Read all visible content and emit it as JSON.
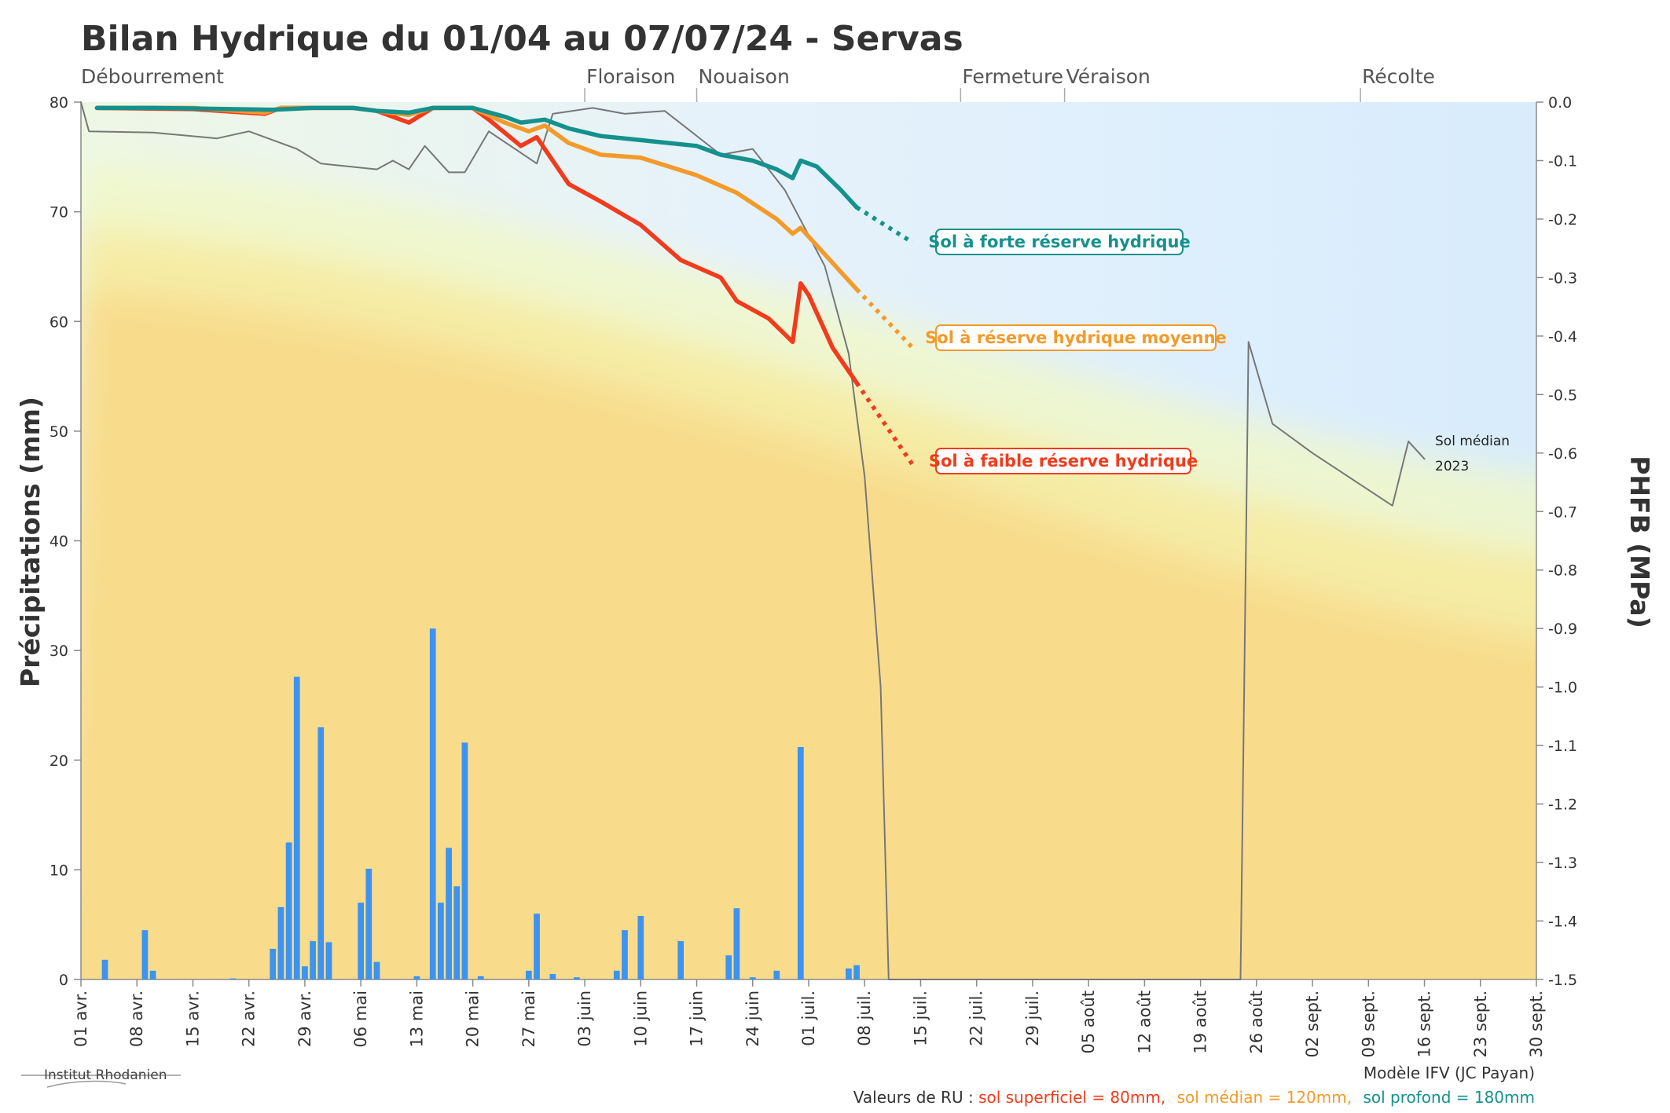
{
  "title": "Bilan Hydrique du 01/04 au 07/07/24 - Servas",
  "colors": {
    "faible": "#f23b1c",
    "moyenne": "#f49a2a",
    "forte": "#15918d",
    "rain": "#3d93f0",
    "median": "#777777"
  },
  "chart_data": {
    "type": "bar+line",
    "x_range": [
      "2024-04-01",
      "2024-09-30"
    ],
    "x_ticks": [
      "01 avr.",
      "08 avr.",
      "15 avr.",
      "22 avr.",
      "29 avr.",
      "06 mai",
      "13 mai",
      "20 mai",
      "27 mai",
      "03 juin",
      "10 juin",
      "17 juin",
      "24 juin",
      "01 juil.",
      "08 juil.",
      "15 juil.",
      "22 juil.",
      "29 juil.",
      "05 août",
      "12 août",
      "19 août",
      "26 août",
      "02 sept.",
      "09 sept.",
      "16 sept.",
      "23 sept.",
      "30 sept."
    ],
    "y_left": {
      "label": "Précipitations (mm)",
      "range": [
        0,
        80
      ],
      "ticks": [
        "0",
        "10",
        "20",
        "30",
        "40",
        "50",
        "60",
        "70",
        "80"
      ]
    },
    "y_right": {
      "label": "PHFB (MPa)",
      "range": [
        -1.5,
        0
      ],
      "ticks": [
        "0.0",
        "-0.1",
        "-0.2",
        "-0.3",
        "-0.4",
        "-0.5",
        "-0.6",
        "-0.7",
        "-0.8",
        "-0.9",
        "-1.0",
        "-1.1",
        "-1.2",
        "-1.3",
        "-1.4",
        "-1.5"
      ]
    },
    "stages": [
      {
        "name": "Débourrement",
        "date": "2024-04-01"
      },
      {
        "name": "Floraison",
        "date": "2024-06-03"
      },
      {
        "name": "Nouaison",
        "date": "2024-06-17"
      },
      {
        "name": "Fermeture",
        "date": "2024-07-20"
      },
      {
        "name": "Véraison",
        "date": "2024-08-02"
      },
      {
        "name": "Récolte",
        "date": "2024-09-08"
      }
    ],
    "precipitation": [
      [
        "2024-04-04",
        1.8
      ],
      [
        "2024-04-09",
        4.5
      ],
      [
        "2024-04-10",
        0.8
      ],
      [
        "2024-04-20",
        0.1
      ],
      [
        "2024-04-25",
        2.8
      ],
      [
        "2024-04-26",
        6.6
      ],
      [
        "2024-04-27",
        12.5
      ],
      [
        "2024-04-28",
        27.6
      ],
      [
        "2024-04-29",
        1.2
      ],
      [
        "2024-04-30",
        3.5
      ],
      [
        "2024-05-01",
        23.0
      ],
      [
        "2024-05-02",
        3.4
      ],
      [
        "2024-05-06",
        7.0
      ],
      [
        "2024-05-07",
        10.1
      ],
      [
        "2024-05-08",
        1.6
      ],
      [
        "2024-05-13",
        0.3
      ],
      [
        "2024-05-15",
        32.0
      ],
      [
        "2024-05-16",
        7.0
      ],
      [
        "2024-05-17",
        12.0
      ],
      [
        "2024-05-18",
        8.5
      ],
      [
        "2024-05-19",
        21.6
      ],
      [
        "2024-05-21",
        0.3
      ],
      [
        "2024-05-27",
        0.8
      ],
      [
        "2024-05-28",
        6.0
      ],
      [
        "2024-05-30",
        0.5
      ],
      [
        "2024-06-02",
        0.2
      ],
      [
        "2024-06-07",
        0.8
      ],
      [
        "2024-06-08",
        4.5
      ],
      [
        "2024-06-10",
        5.8
      ],
      [
        "2024-06-15",
        3.5
      ],
      [
        "2024-06-21",
        2.2
      ],
      [
        "2024-06-22",
        6.5
      ],
      [
        "2024-06-24",
        0.2
      ],
      [
        "2024-06-27",
        0.8
      ],
      [
        "2024-06-30",
        21.2
      ],
      [
        "2024-07-06",
        1.0
      ],
      [
        "2024-07-07",
        1.3
      ]
    ],
    "series": [
      {
        "name": "Sol à forte réserve hydrique",
        "color_key": "forte",
        "values": [
          [
            "2024-04-03",
            -0.01
          ],
          [
            "2024-04-10",
            -0.01
          ],
          [
            "2024-04-25",
            -0.013
          ],
          [
            "2024-04-30",
            -0.01
          ],
          [
            "2024-05-05",
            -0.01
          ],
          [
            "2024-05-08",
            -0.015
          ],
          [
            "2024-05-12",
            -0.018
          ],
          [
            "2024-05-15",
            -0.01
          ],
          [
            "2024-05-20",
            -0.01
          ],
          [
            "2024-05-24",
            -0.025
          ],
          [
            "2024-05-26",
            -0.035
          ],
          [
            "2024-05-29",
            -0.03
          ],
          [
            "2024-06-01",
            -0.045
          ],
          [
            "2024-06-05",
            -0.058
          ],
          [
            "2024-06-10",
            -0.065
          ],
          [
            "2024-06-17",
            -0.075
          ],
          [
            "2024-06-20",
            -0.09
          ],
          [
            "2024-06-24",
            -0.1
          ],
          [
            "2024-06-27",
            -0.115
          ],
          [
            "2024-06-29",
            -0.13
          ],
          [
            "2024-06-30",
            -0.1
          ],
          [
            "2024-07-02",
            -0.11
          ],
          [
            "2024-07-05",
            -0.15
          ],
          [
            "2024-07-07",
            -0.18
          ]
        ],
        "forecast": [
          [
            "2024-07-07",
            -0.18
          ],
          [
            "2024-07-14",
            -0.24
          ]
        ]
      },
      {
        "name": "Sol à réserve hydrique moyenne",
        "color_key": "moyenne",
        "values": [
          [
            "2024-04-03",
            -0.01
          ],
          [
            "2024-04-15",
            -0.01
          ],
          [
            "2024-04-24",
            -0.018
          ],
          [
            "2024-04-26",
            -0.01
          ],
          [
            "2024-05-05",
            -0.01
          ],
          [
            "2024-05-08",
            -0.015
          ],
          [
            "2024-05-12",
            -0.022
          ],
          [
            "2024-05-15",
            -0.01
          ],
          [
            "2024-05-20",
            -0.01
          ],
          [
            "2024-05-24",
            -0.035
          ],
          [
            "2024-05-27",
            -0.05
          ],
          [
            "2024-05-29",
            -0.04
          ],
          [
            "2024-06-01",
            -0.07
          ],
          [
            "2024-06-05",
            -0.09
          ],
          [
            "2024-06-10",
            -0.095
          ],
          [
            "2024-06-17",
            -0.125
          ],
          [
            "2024-06-22",
            -0.155
          ],
          [
            "2024-06-27",
            -0.2
          ],
          [
            "2024-06-29",
            -0.225
          ],
          [
            "2024-06-30",
            -0.215
          ],
          [
            "2024-07-02",
            -0.245
          ],
          [
            "2024-07-05",
            -0.29
          ],
          [
            "2024-07-07",
            -0.32
          ]
        ],
        "forecast": [
          [
            "2024-07-07",
            -0.32
          ],
          [
            "2024-07-14",
            -0.42
          ]
        ]
      },
      {
        "name": "Sol à faible réserve hydrique",
        "color_key": "faible",
        "values": [
          [
            "2024-04-03",
            -0.01
          ],
          [
            "2024-04-15",
            -0.012
          ],
          [
            "2024-04-24",
            -0.02
          ],
          [
            "2024-04-26",
            -0.01
          ],
          [
            "2024-05-05",
            -0.01
          ],
          [
            "2024-05-08",
            -0.015
          ],
          [
            "2024-05-12",
            -0.035
          ],
          [
            "2024-05-15",
            -0.01
          ],
          [
            "2024-05-20",
            -0.01
          ],
          [
            "2024-05-22",
            -0.03
          ],
          [
            "2024-05-26",
            -0.075
          ],
          [
            "2024-05-28",
            -0.06
          ],
          [
            "2024-06-01",
            -0.14
          ],
          [
            "2024-06-05",
            -0.17
          ],
          [
            "2024-06-10",
            -0.21
          ],
          [
            "2024-06-15",
            -0.27
          ],
          [
            "2024-06-20",
            -0.3
          ],
          [
            "2024-06-22",
            -0.34
          ],
          [
            "2024-06-26",
            -0.37
          ],
          [
            "2024-06-29",
            -0.41
          ],
          [
            "2024-06-30",
            -0.31
          ],
          [
            "2024-07-01",
            -0.33
          ],
          [
            "2024-07-04",
            -0.42
          ],
          [
            "2024-07-07",
            -0.48
          ]
        ],
        "forecast": [
          [
            "2024-07-07",
            -0.48
          ],
          [
            "2024-07-14",
            -0.62
          ]
        ]
      },
      {
        "name": "Sol médian 2023",
        "color_key": "median",
        "values": [
          [
            "2024-04-01",
            0.0
          ],
          [
            "2024-04-02",
            -0.05
          ],
          [
            "2024-04-10",
            -0.052
          ],
          [
            "2024-04-18",
            -0.062
          ],
          [
            "2024-04-22",
            -0.05
          ],
          [
            "2024-04-28",
            -0.08
          ],
          [
            "2024-05-01",
            -0.105
          ],
          [
            "2024-05-08",
            -0.115
          ],
          [
            "2024-05-10",
            -0.1
          ],
          [
            "2024-05-12",
            -0.115
          ],
          [
            "2024-05-14",
            -0.075
          ],
          [
            "2024-05-17",
            -0.12
          ],
          [
            "2024-05-19",
            -0.12
          ],
          [
            "2024-05-22",
            -0.05
          ],
          [
            "2024-05-28",
            -0.105
          ],
          [
            "2024-05-30",
            -0.02
          ],
          [
            "2024-06-04",
            -0.01
          ],
          [
            "2024-06-08",
            -0.02
          ],
          [
            "2024-06-13",
            -0.015
          ],
          [
            "2024-06-20",
            -0.09
          ],
          [
            "2024-06-24",
            -0.08
          ],
          [
            "2024-06-28",
            -0.15
          ],
          [
            "2024-07-03",
            -0.28
          ],
          [
            "2024-07-06",
            -0.43
          ],
          [
            "2024-07-08",
            -0.64
          ],
          [
            "2024-07-10",
            -1.0
          ],
          [
            "2024-07-11",
            -1.5
          ],
          [
            "2024-08-24",
            -1.5
          ],
          [
            "2024-08-25",
            -0.41
          ],
          [
            "2024-08-28",
            -0.55
          ],
          [
            "2024-09-02",
            -0.6
          ],
          [
            "2024-09-12",
            -0.69
          ],
          [
            "2024-09-14",
            -0.58
          ],
          [
            "2024-09-16",
            -0.61
          ]
        ]
      }
    ]
  },
  "labels": {
    "forte": "Sol à forte réserve hydrique",
    "moyenne": "Sol à réserve hydrique moyenne",
    "faible": "Sol à faible réserve hydrique",
    "median_line1": "Sol médian",
    "median_line2": "2023"
  },
  "footer": {
    "model": "Modèle IFV (JC Payan)",
    "ru_prefix": "Valeurs de RU : ",
    "ru_faible": "sol superficiel = 80mm,",
    "ru_moyenne": "sol médian = 120mm,",
    "ru_forte": "sol profond = 180mm"
  },
  "logo": {
    "text": "Institut Rhodanien"
  }
}
